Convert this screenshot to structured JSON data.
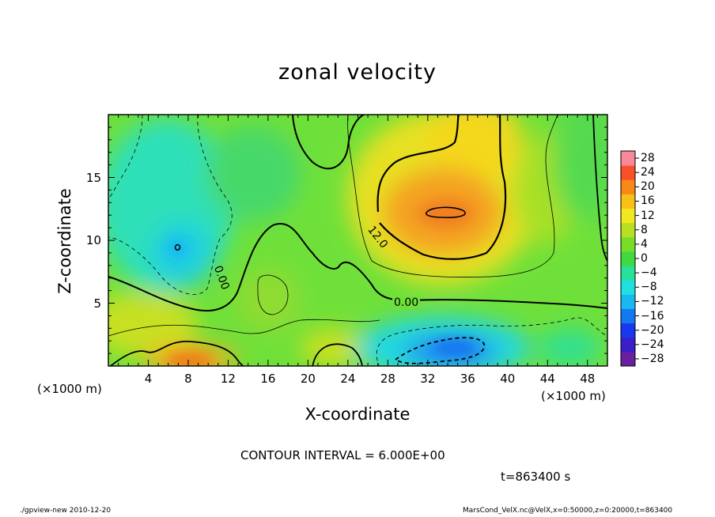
{
  "chart_data": {
    "type": "heatmap",
    "title": "zonal velocity",
    "xlabel": "X-coordinate",
    "ylabel": "Z-coordinate",
    "x_unit_label": "(×1000 m)",
    "x_ticks": [
      4,
      8,
      12,
      16,
      20,
      24,
      28,
      32,
      36,
      40,
      44,
      48
    ],
    "y_ticks": [
      5,
      10,
      15
    ],
    "xlim": [
      0,
      50
    ],
    "ylim": [
      0,
      20
    ],
    "colorbar": {
      "levels": [
        28,
        24,
        20,
        16,
        12,
        8,
        4,
        0,
        -4,
        -8,
        -12,
        -16,
        -20,
        -24,
        -28
      ],
      "range": [
        -30,
        30
      ]
    },
    "contour_labels": [
      "12.0",
      "0.00",
      "0.00"
    ],
    "features": [
      {
        "name": "eastward jet core",
        "x": 34,
        "z": 12.2,
        "value": 18
      },
      {
        "name": "westward near-surface",
        "x": 34,
        "z": 1.5,
        "value": -11
      },
      {
        "name": "westward upper-left",
        "x": 7,
        "z": 9.5,
        "value": -10
      },
      {
        "name": "eastward near-surface",
        "x": 10,
        "z": 1,
        "value": 17
      }
    ]
  },
  "annotations": {
    "contour_interval": "CONTOUR INTERVAL = 6.000E+00",
    "time": "t=863400 s",
    "footer_left": "./gpview-new  2010-12-20",
    "footer_right": "MarsCond_VelX.nc@VelX,x=0:50000,z=0:20000,t=863400"
  },
  "colors": {
    "plot_background": "#6FE03A",
    "contour": "#000000"
  }
}
